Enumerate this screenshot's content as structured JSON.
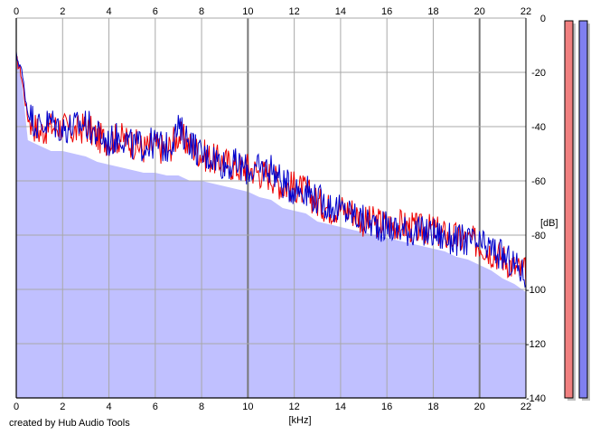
{
  "credit": "created by Hub Audio Tools",
  "chart_data": {
    "type": "line",
    "title": "",
    "xlabel": "[kHz]",
    "ylabel": "[dB]",
    "xlim": [
      0,
      22
    ],
    "ylim": [
      -140,
      0
    ],
    "x_ticks": [
      "0",
      "2",
      "4",
      "6",
      "8",
      "10",
      "12",
      "14",
      "16",
      "18",
      "20",
      "22"
    ],
    "y_ticks": [
      "0",
      "-20",
      "-40",
      "-60",
      "-80",
      "-100",
      "-120",
      "-140"
    ],
    "grid": true,
    "fill_color": "#c0c0ff",
    "series": [
      {
        "color": "#ee0000",
        "x": [
          0,
          0.2,
          0.5,
          1,
          1.5,
          2,
          2.5,
          3,
          3.5,
          4,
          4.5,
          5,
          5.5,
          6,
          6.5,
          7,
          7.5,
          8,
          8.5,
          9,
          9.5,
          10,
          10.5,
          11,
          11.5,
          12,
          12.5,
          13,
          13.5,
          14,
          14.5,
          15,
          15.5,
          16,
          16.5,
          17,
          17.5,
          18,
          18.5,
          19,
          19.5,
          20,
          20.5,
          21,
          21.5,
          22
        ],
        "y": [
          -15,
          -20,
          -37,
          -42,
          -40,
          -40,
          -42,
          -40,
          -44,
          -45,
          -44,
          -46,
          -48,
          -47,
          -49,
          -43,
          -47,
          -50,
          -52,
          -53,
          -55,
          -55,
          -57,
          -58,
          -62,
          -62,
          -64,
          -68,
          -70,
          -70,
          -71,
          -75,
          -75,
          -76,
          -76,
          -77,
          -78,
          -78,
          -80,
          -81,
          -82,
          -83,
          -86,
          -88,
          -92,
          -94
        ]
      },
      {
        "color": "#0000cc",
        "x": [
          0,
          0.2,
          0.5,
          1,
          1.5,
          2,
          2.5,
          3,
          3.5,
          4,
          4.5,
          5,
          5.5,
          6,
          6.5,
          7,
          7.5,
          8,
          8.5,
          9,
          9.5,
          10,
          10.5,
          11,
          11.5,
          12,
          12.5,
          13,
          13.5,
          14,
          14.5,
          15,
          15.5,
          16,
          16.5,
          17,
          17.5,
          18,
          18.5,
          19,
          19.5,
          20,
          20.5,
          21,
          21.5,
          22
        ],
        "y": [
          -14,
          -18,
          -35,
          -40,
          -38,
          -41,
          -40,
          -39,
          -43,
          -46,
          -43,
          -47,
          -47,
          -46,
          -48,
          -41,
          -45,
          -51,
          -51,
          -54,
          -54,
          -56,
          -56,
          -55,
          -61,
          -63,
          -63,
          -67,
          -69,
          -71,
          -72,
          -75,
          -76,
          -77,
          -78,
          -78,
          -79,
          -79,
          -81,
          -82,
          -82,
          -84,
          -85,
          -88,
          -91,
          -95
        ]
      }
    ],
    "fill_level": [
      -15,
      -20,
      -45,
      -47,
      -49,
      -49,
      -50,
      -51,
      -53,
      -54,
      -55,
      -56,
      -57,
      -57,
      -58,
      -58,
      -60,
      -60,
      -61,
      -62,
      -63,
      -64,
      -66,
      -67,
      -70,
      -71,
      -72,
      -75,
      -76,
      -77,
      -78,
      -79,
      -80,
      -81,
      -82,
      -83,
      -84,
      -85,
      -86,
      -88,
      -89,
      -91,
      -93,
      -96,
      -98,
      -101
    ],
    "meters": [
      {
        "color": "#f08080",
        "level": 0
      },
      {
        "color": "#8080f0",
        "level": 0
      }
    ]
  }
}
